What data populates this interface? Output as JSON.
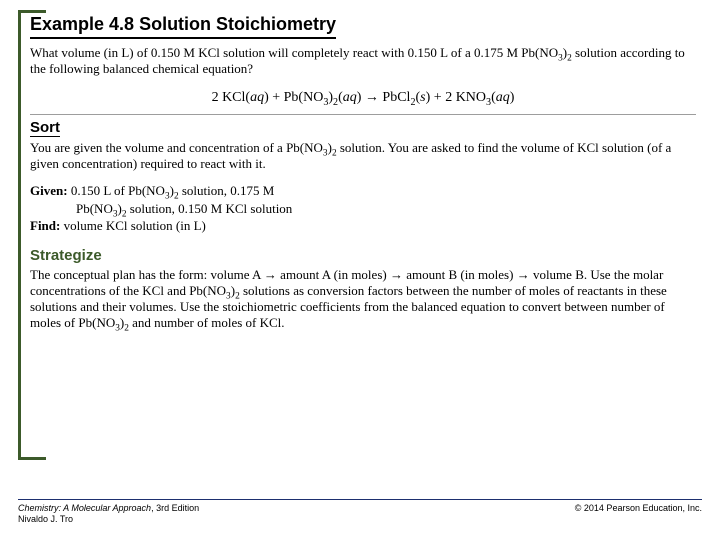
{
  "colors": {
    "bracket": "#3c5a2a",
    "footer_rule": "#1d2f6f",
    "background": "#ffffff"
  },
  "title": "Example 4.8  Solution Stoichiometry",
  "problem": {
    "line": "What volume (in L) of 0.150 M KCl solution will completely react with 0.150 L of a 0.175 M Pb(NO₃)₂ solution according to the following balanced chemical equation?"
  },
  "equation": {
    "lhs1_coef": "2",
    "lhs1": "KCl(aq)",
    "plus1": "+",
    "lhs2": "Pb(NO₃)₂(aq)",
    "arrow": "→",
    "rhs1": "PbCl₂(s)",
    "plus2": "+",
    "rhs2_coef": "2",
    "rhs2": "KNO₃(aq)"
  },
  "sort": {
    "head": "Sort",
    "text": "You are given the volume and concentration of a Pb(NO₃)₂ solution. You are asked to find the volume of KCl solution (of a given concentration) required to react with it.",
    "given_label": "Given:",
    "given_line1": "0.150 L of Pb(NO₃)₂ solution, 0.175 M",
    "given_line2": "Pb(NO₃)₂ solution, 0.150 M KCl solution",
    "find_label": "Find:",
    "find_line": "volume KCl solution (in L)"
  },
  "strategize": {
    "head": "Strategize",
    "text": "The conceptual plan has the form: volume A → amount A (in moles) → amount B (in moles) → volume B. Use the molar concentrations of the KCl and Pb(NO₃)₂ solutions as conversion factors between the number of moles of reactants in these solutions and their volumes. Use the stoichiometric coefficients from the balanced equation to convert between number of moles of Pb(NO₃)₂ and number of moles of KCl."
  },
  "footer": {
    "book": "Chemistry: A Molecular Approach",
    "edition": ", 3rd Edition",
    "author": "Nivaldo J. Tro",
    "copyright": "© 2014 Pearson Education, Inc."
  }
}
